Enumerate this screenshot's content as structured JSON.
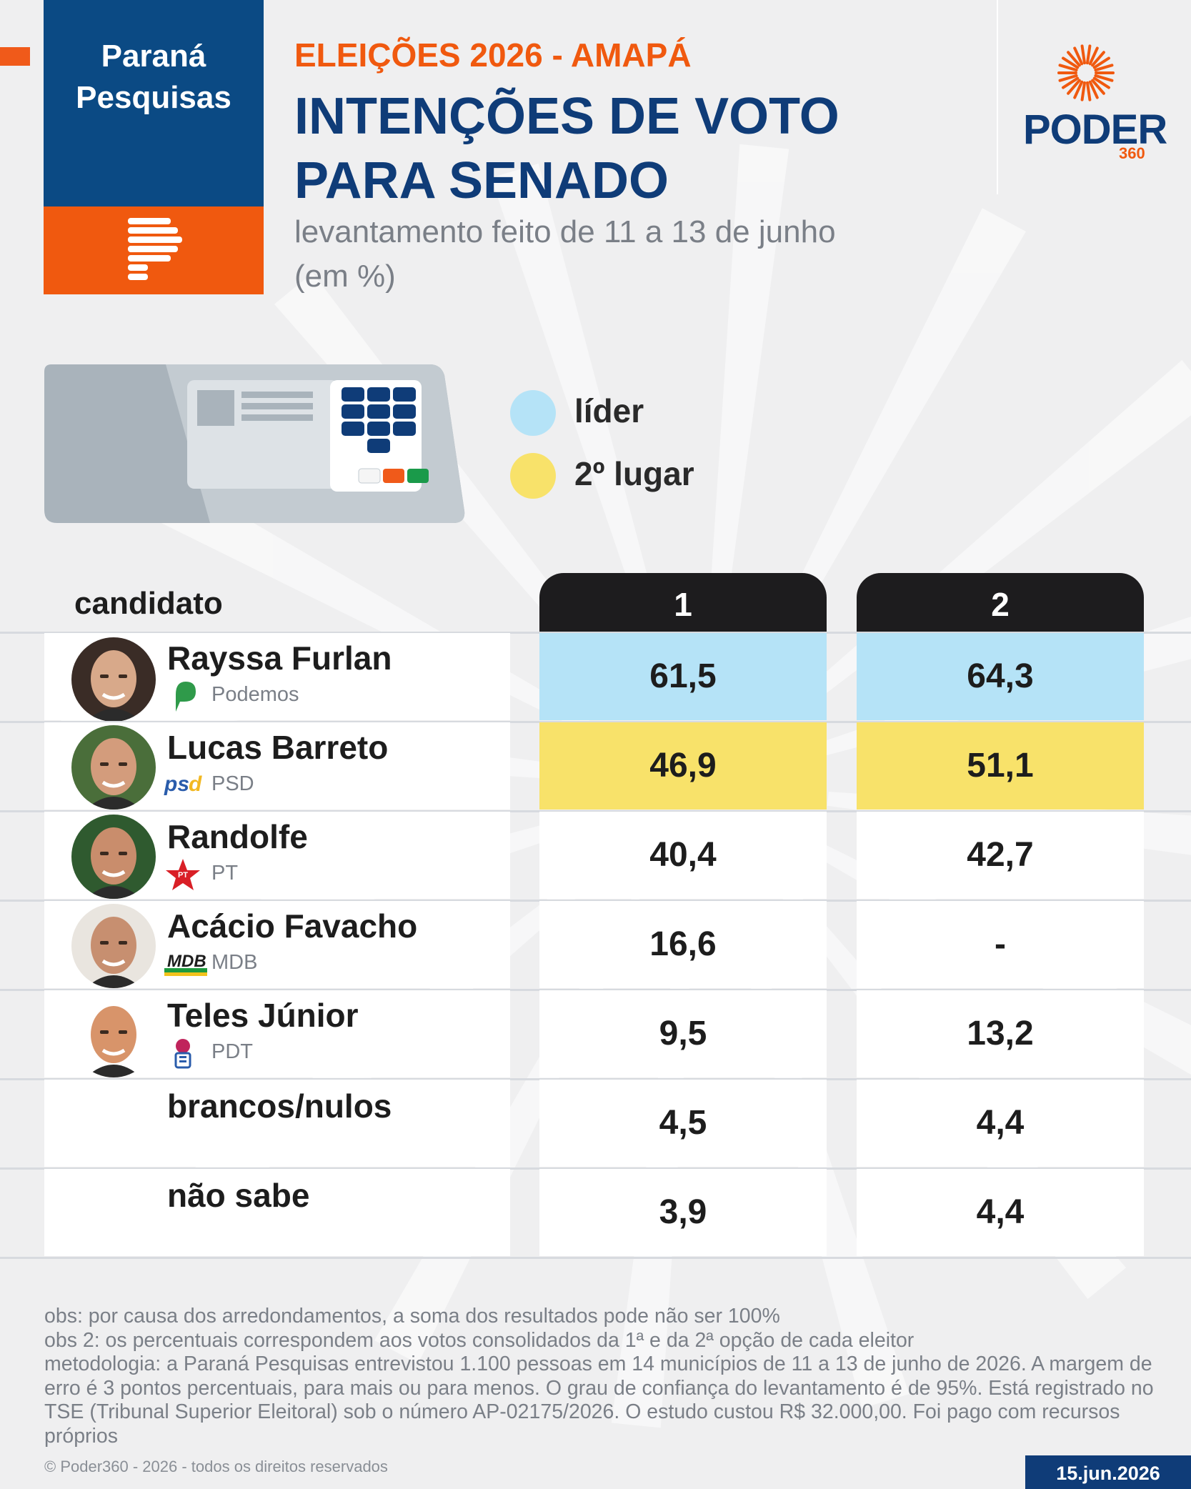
{
  "header": {
    "brand": [
      "Paraná",
      "Pesquisas"
    ],
    "kicker": "ELEIÇÕES 2026 - AMAPÁ",
    "title_lines": [
      "INTENÇÕES DE VOTO",
      "PARA SENADO"
    ],
    "period_lines": [
      "levantamento feito de 11 a 13 de junho",
      "(em %)"
    ],
    "publisher": "PODER",
    "publisher_number": "360"
  },
  "legend": {
    "leader": {
      "label": "líder",
      "color": "#b5e3f7"
    },
    "second": {
      "label": "2º lugar",
      "color": "#f8e26a"
    }
  },
  "table": {
    "candidate_header": "candidato",
    "columns": [
      "1",
      "2"
    ]
  },
  "chart_data": {
    "type": "table",
    "title": "INTENÇÕES DE VOTO PARA SENADO",
    "columns": [
      "1",
      "2"
    ],
    "rows": [
      {
        "name": "Rayssa Furlan",
        "party": "Podemos",
        "values": [
          "61,5",
          "64,3"
        ],
        "highlight": "leader"
      },
      {
        "name": "Lucas Barreto",
        "party": "PSD",
        "values": [
          "46,9",
          "51,1"
        ],
        "highlight": "second"
      },
      {
        "name": "Randolfe",
        "party": "PT",
        "values": [
          "40,4",
          "42,7"
        ],
        "highlight": ""
      },
      {
        "name": "Acácio Favacho",
        "party": "MDB",
        "values": [
          "16,6",
          "-"
        ],
        "highlight": ""
      },
      {
        "name": "Teles Júnior",
        "party": "PDT",
        "values": [
          "9,5",
          "13,2"
        ],
        "highlight": ""
      },
      {
        "name": "brancos/nulos",
        "party": "",
        "values": [
          "4,5",
          "4,4"
        ],
        "highlight": ""
      },
      {
        "name": "não sabe",
        "party": "",
        "values": [
          "3,9",
          "4,4"
        ],
        "highlight": ""
      }
    ]
  },
  "party_logos": {
    "Podemos": "podemos-logo",
    "PSD": "psd-logo",
    "PT": "pt-star-logo",
    "MDB": "mdb-logo",
    "PDT": "pdt-logo"
  },
  "pt_logo_text": "PT",
  "psd_logo_text": "psd",
  "mdb_logo_text": "MDB",
  "notes": {
    "obs1": "obs: por causa dos arredondamentos, a soma dos resultados pode não ser 100%",
    "obs2": "obs 2: os percentuais correspondem aos votos consolidados da 1ª e da 2ª opção de cada eleitor",
    "method": "metodologia: a Paraná Pesquisas entrevistou 1.100 pessoas em 14 municípios de 11 a 13 de junho de 2026. A margem de erro é 3 pontos percentuais, para mais ou para menos. O grau de confiança do levantamento é de 95%. Está registrado no TSE (Tribunal Superior Eleitoral) sob o número AP-02175/2026. O estudo custou R$ 32.000,00. Foi pago com recursos próprios"
  },
  "footer": {
    "copyright": "© Poder360 - 2026 - todos os direitos reservados",
    "date": "15.jun.2026"
  },
  "colors": {
    "navy": "#0f3c78",
    "orange": "#f0590f",
    "leader": "#b5e3f7",
    "second": "#f8e26a",
    "tab": "#1d1c1e"
  }
}
